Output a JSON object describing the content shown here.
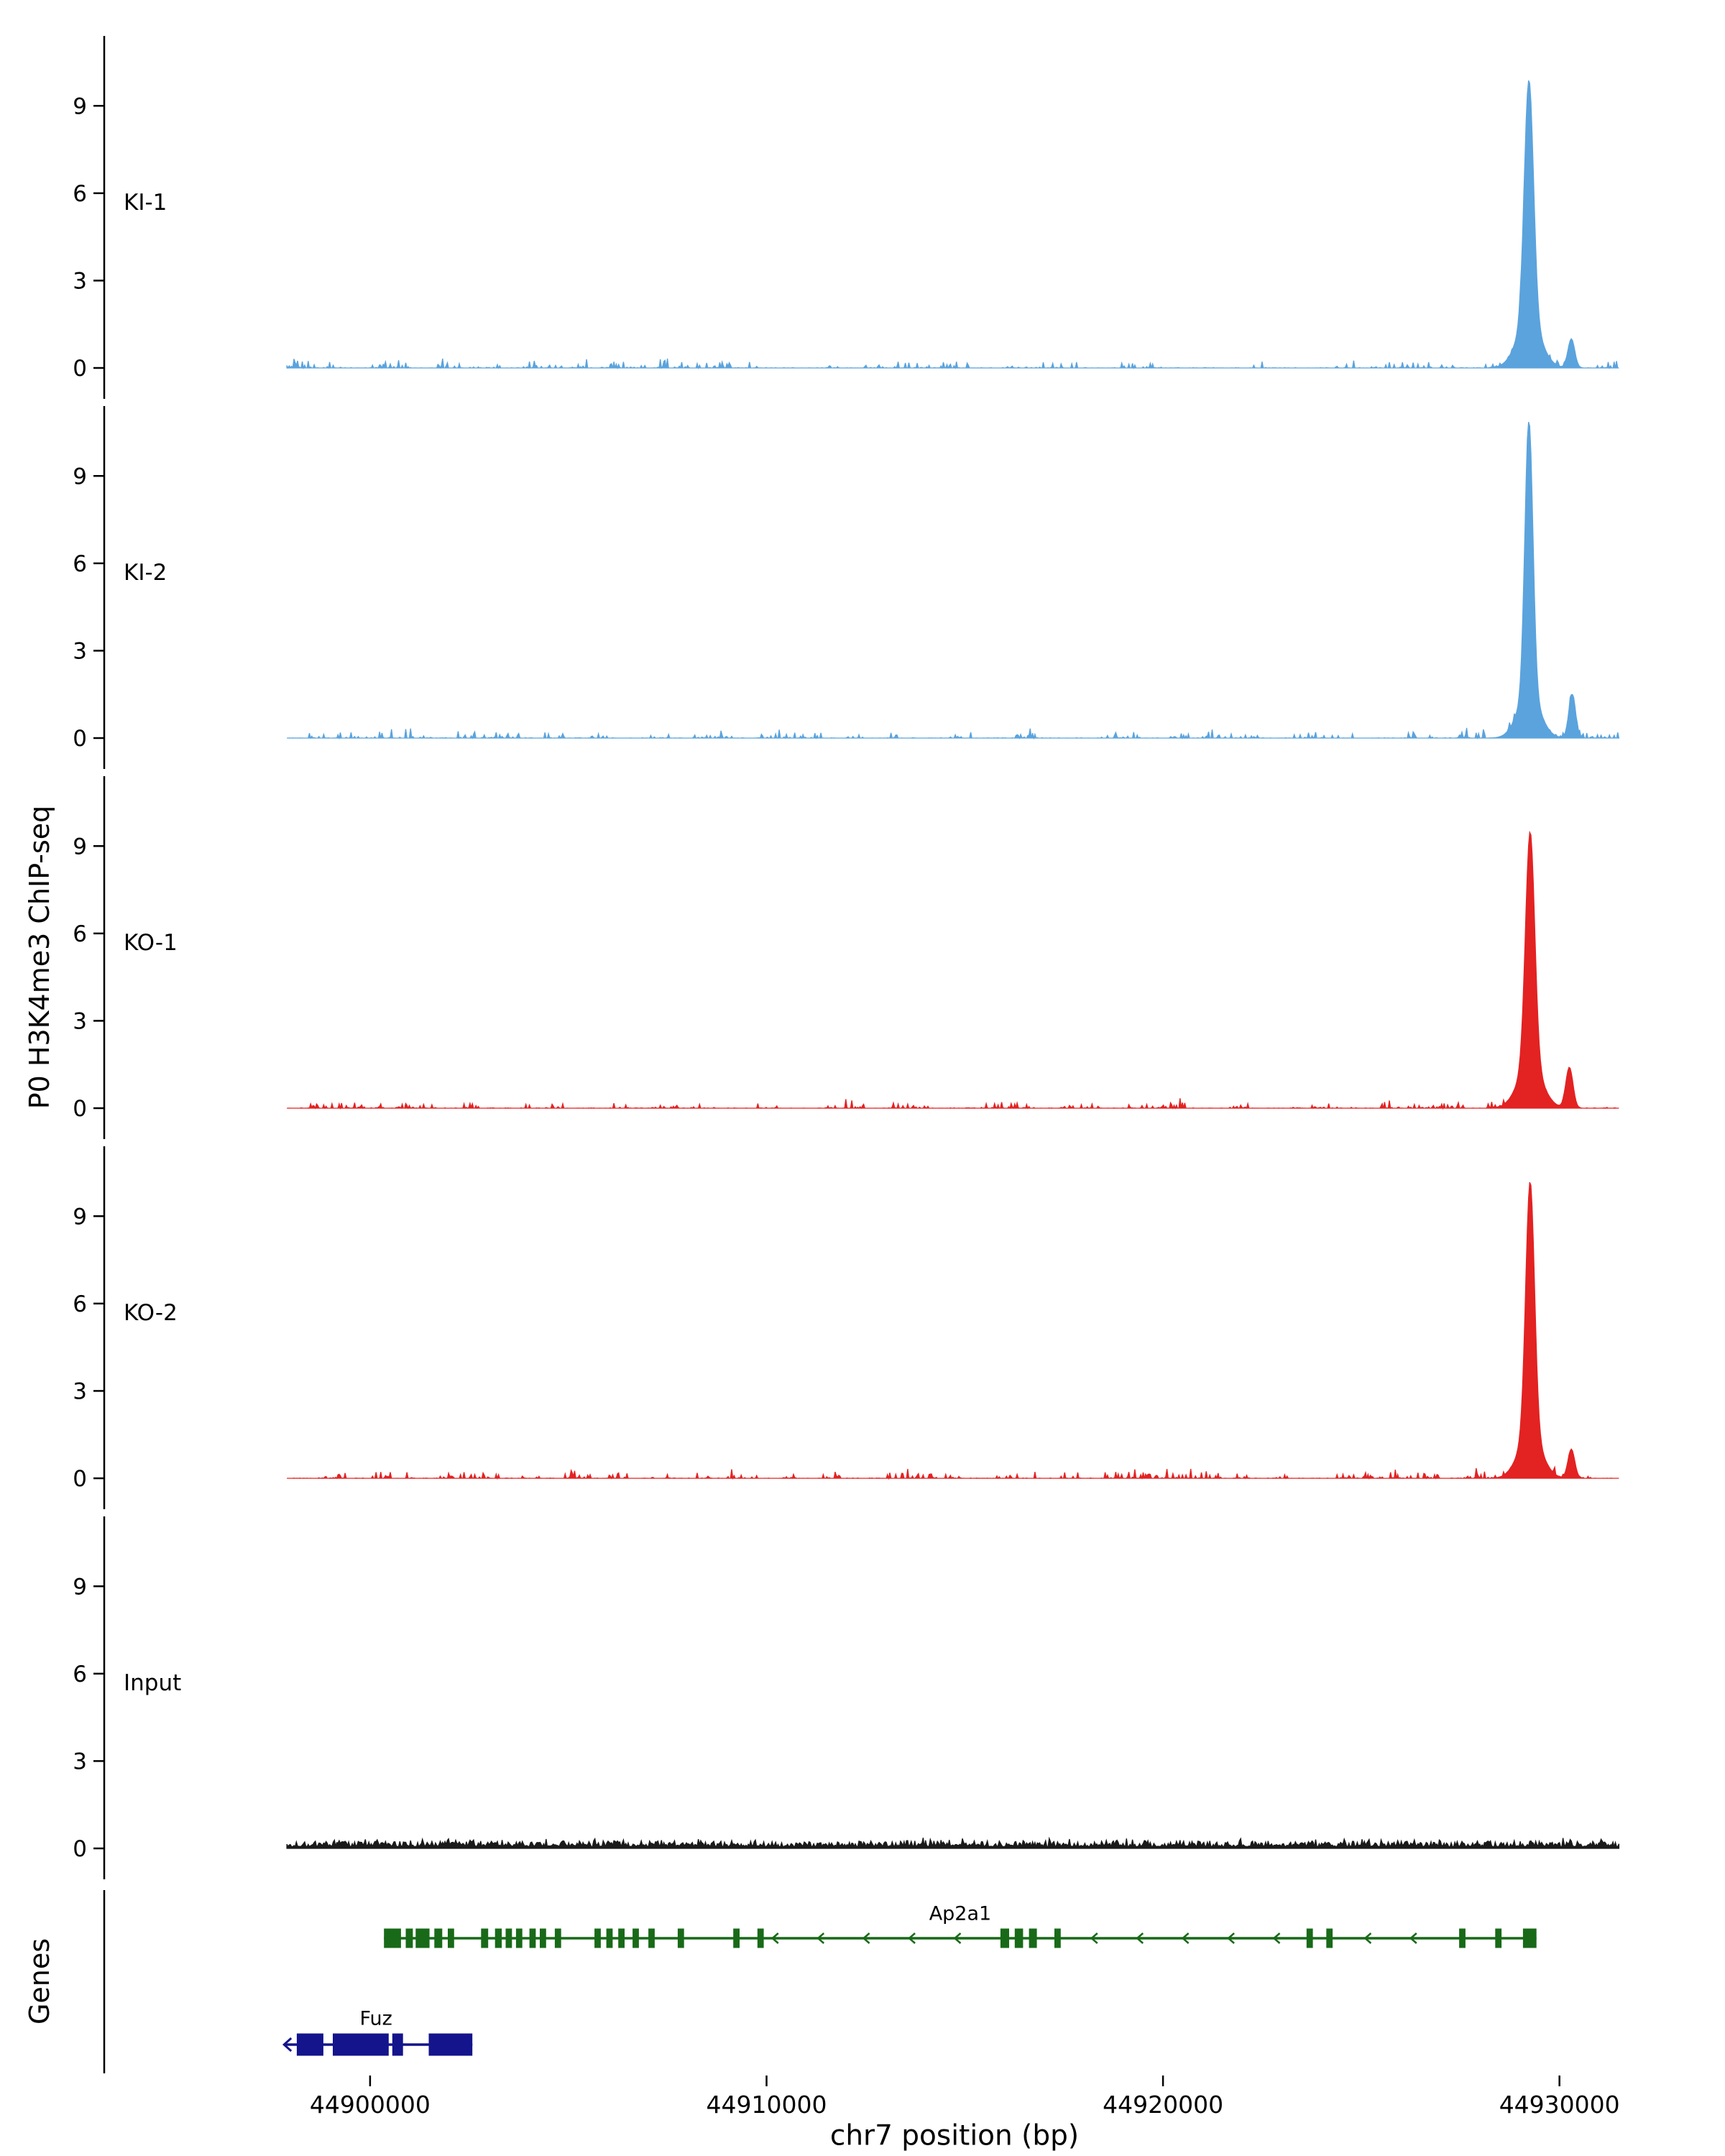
{
  "figure": {
    "y_axis_label": "P0 H3K4me3 ChIP-seq",
    "genes_axis_label": "Genes",
    "x_axis_title": "chr7 position (bp)"
  },
  "chart_data": {
    "type": "area",
    "title": "",
    "xlabel": "chr7 position (bp)",
    "ylabel": "P0 H3K4me3 ChIP-seq",
    "xlim": [
      44897500,
      44932000
    ],
    "ylim": [
      0,
      11.4
    ],
    "x_ticks": [
      44900000,
      44910000,
      44920000,
      44930000
    ],
    "y_ticks": [
      0,
      3,
      6,
      9
    ],
    "grid": false,
    "legend": false,
    "tracks": [
      {
        "label": "KI-1",
        "color": "#5BA3DD",
        "seed": 1,
        "noise": 0.22,
        "continuous": false,
        "peaks": [
          {
            "center": 44929230,
            "height": 8.3,
            "sigma": 115
          },
          {
            "center": 44929230,
            "height": 1.6,
            "sigma": 300
          },
          {
            "center": 44930300,
            "height": 1.0,
            "sigma": 85
          }
        ]
      },
      {
        "label": "KI-2",
        "color": "#5BA3DD",
        "seed": 2,
        "noise": 0.22,
        "continuous": false,
        "peaks": [
          {
            "center": 44929230,
            "height": 9.4,
            "sigma": 100
          },
          {
            "center": 44929230,
            "height": 1.5,
            "sigma": 280
          },
          {
            "center": 44930320,
            "height": 1.5,
            "sigma": 85
          }
        ]
      },
      {
        "label": "KO-1",
        "color": "#E32222",
        "seed": 3,
        "noise": 0.22,
        "continuous": false,
        "peaks": [
          {
            "center": 44929260,
            "height": 8.0,
            "sigma": 115
          },
          {
            "center": 44929260,
            "height": 1.5,
            "sigma": 300
          },
          {
            "center": 44930250,
            "height": 1.4,
            "sigma": 90
          }
        ]
      },
      {
        "label": "KO-2",
        "color": "#E32222",
        "seed": 4,
        "noise": 0.22,
        "continuous": false,
        "peaks": [
          {
            "center": 44929260,
            "height": 8.7,
            "sigma": 110
          },
          {
            "center": 44929260,
            "height": 1.5,
            "sigma": 290
          },
          {
            "center": 44930300,
            "height": 1.0,
            "sigma": 85
          }
        ]
      },
      {
        "label": "Input",
        "color": "#1A1A1A",
        "seed": 5,
        "noise": 0.22,
        "continuous": true,
        "peaks": []
      }
    ],
    "genes": [
      {
        "name": "Ap2a1",
        "color": "#186A18",
        "strand": "-",
        "row": 0,
        "start": 44900350,
        "end": 44929420,
        "exon_h": 27,
        "tip_arrow": false,
        "exons": [
          [
            44900350,
            44900780
          ],
          [
            44900900,
            44901080
          ],
          [
            44901150,
            44901500
          ],
          [
            44901620,
            44901820
          ],
          [
            44901960,
            44902120
          ],
          [
            44902800,
            44902980
          ],
          [
            44903150,
            44903320
          ],
          [
            44903420,
            44903580
          ],
          [
            44903680,
            44903840
          ],
          [
            44904020,
            44904180
          ],
          [
            44904280,
            44904440
          ],
          [
            44904660,
            44904820
          ],
          [
            44905660,
            44905820
          ],
          [
            44905960,
            44906120
          ],
          [
            44906260,
            44906420
          ],
          [
            44906620,
            44906780
          ],
          [
            44907020,
            44907180
          ],
          [
            44907760,
            44907920
          ],
          [
            44909160,
            44909320
          ],
          [
            44909770,
            44909930
          ],
          [
            44915900,
            44916120
          ],
          [
            44916260,
            44916470
          ],
          [
            44916620,
            44916820
          ],
          [
            44917260,
            44917420
          ],
          [
            44923620,
            44923780
          ],
          [
            44924120,
            44924280
          ],
          [
            44927470,
            44927630
          ],
          [
            44928380,
            44928540
          ],
          [
            44929080,
            44929420
          ]
        ]
      },
      {
        "name": "Fuz",
        "color": "#14148C",
        "strand": "-",
        "row": 1,
        "start": 44897830,
        "end": 44902580,
        "exon_h": 31,
        "tip_arrow": true,
        "label_x": 44900150,
        "exons": [
          [
            44898150,
            44898820
          ],
          [
            44899060,
            44900470
          ],
          [
            44900560,
            44900830
          ],
          [
            44901480,
            44902580
          ]
        ]
      }
    ]
  }
}
